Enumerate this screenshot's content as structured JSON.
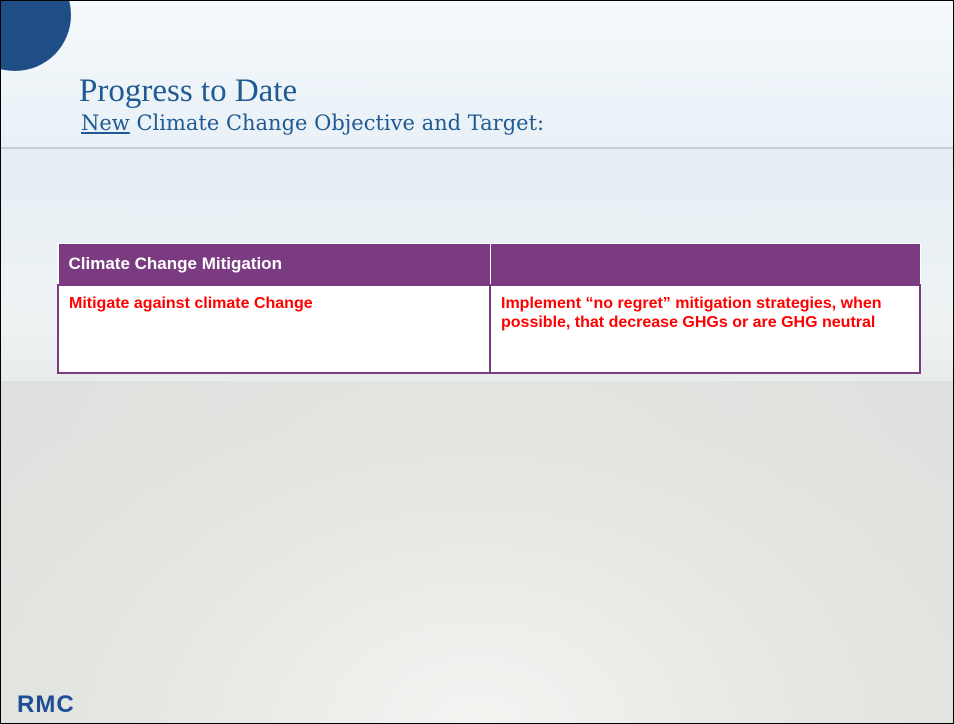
{
  "header": {
    "title": "Progress to Date",
    "subtitle_emphasis": "New",
    "subtitle_rest": "Climate Change Objective and Target:"
  },
  "table": {
    "header": [
      "Climate Change Mitigation"
    ],
    "rows": [
      [
        "Mitigate against climate Change",
        "Implement “no regret” mitigation strategies, when possible, that decrease GHGs or are GHG neutral"
      ]
    ]
  },
  "footer": {
    "logo": "RMC"
  }
}
